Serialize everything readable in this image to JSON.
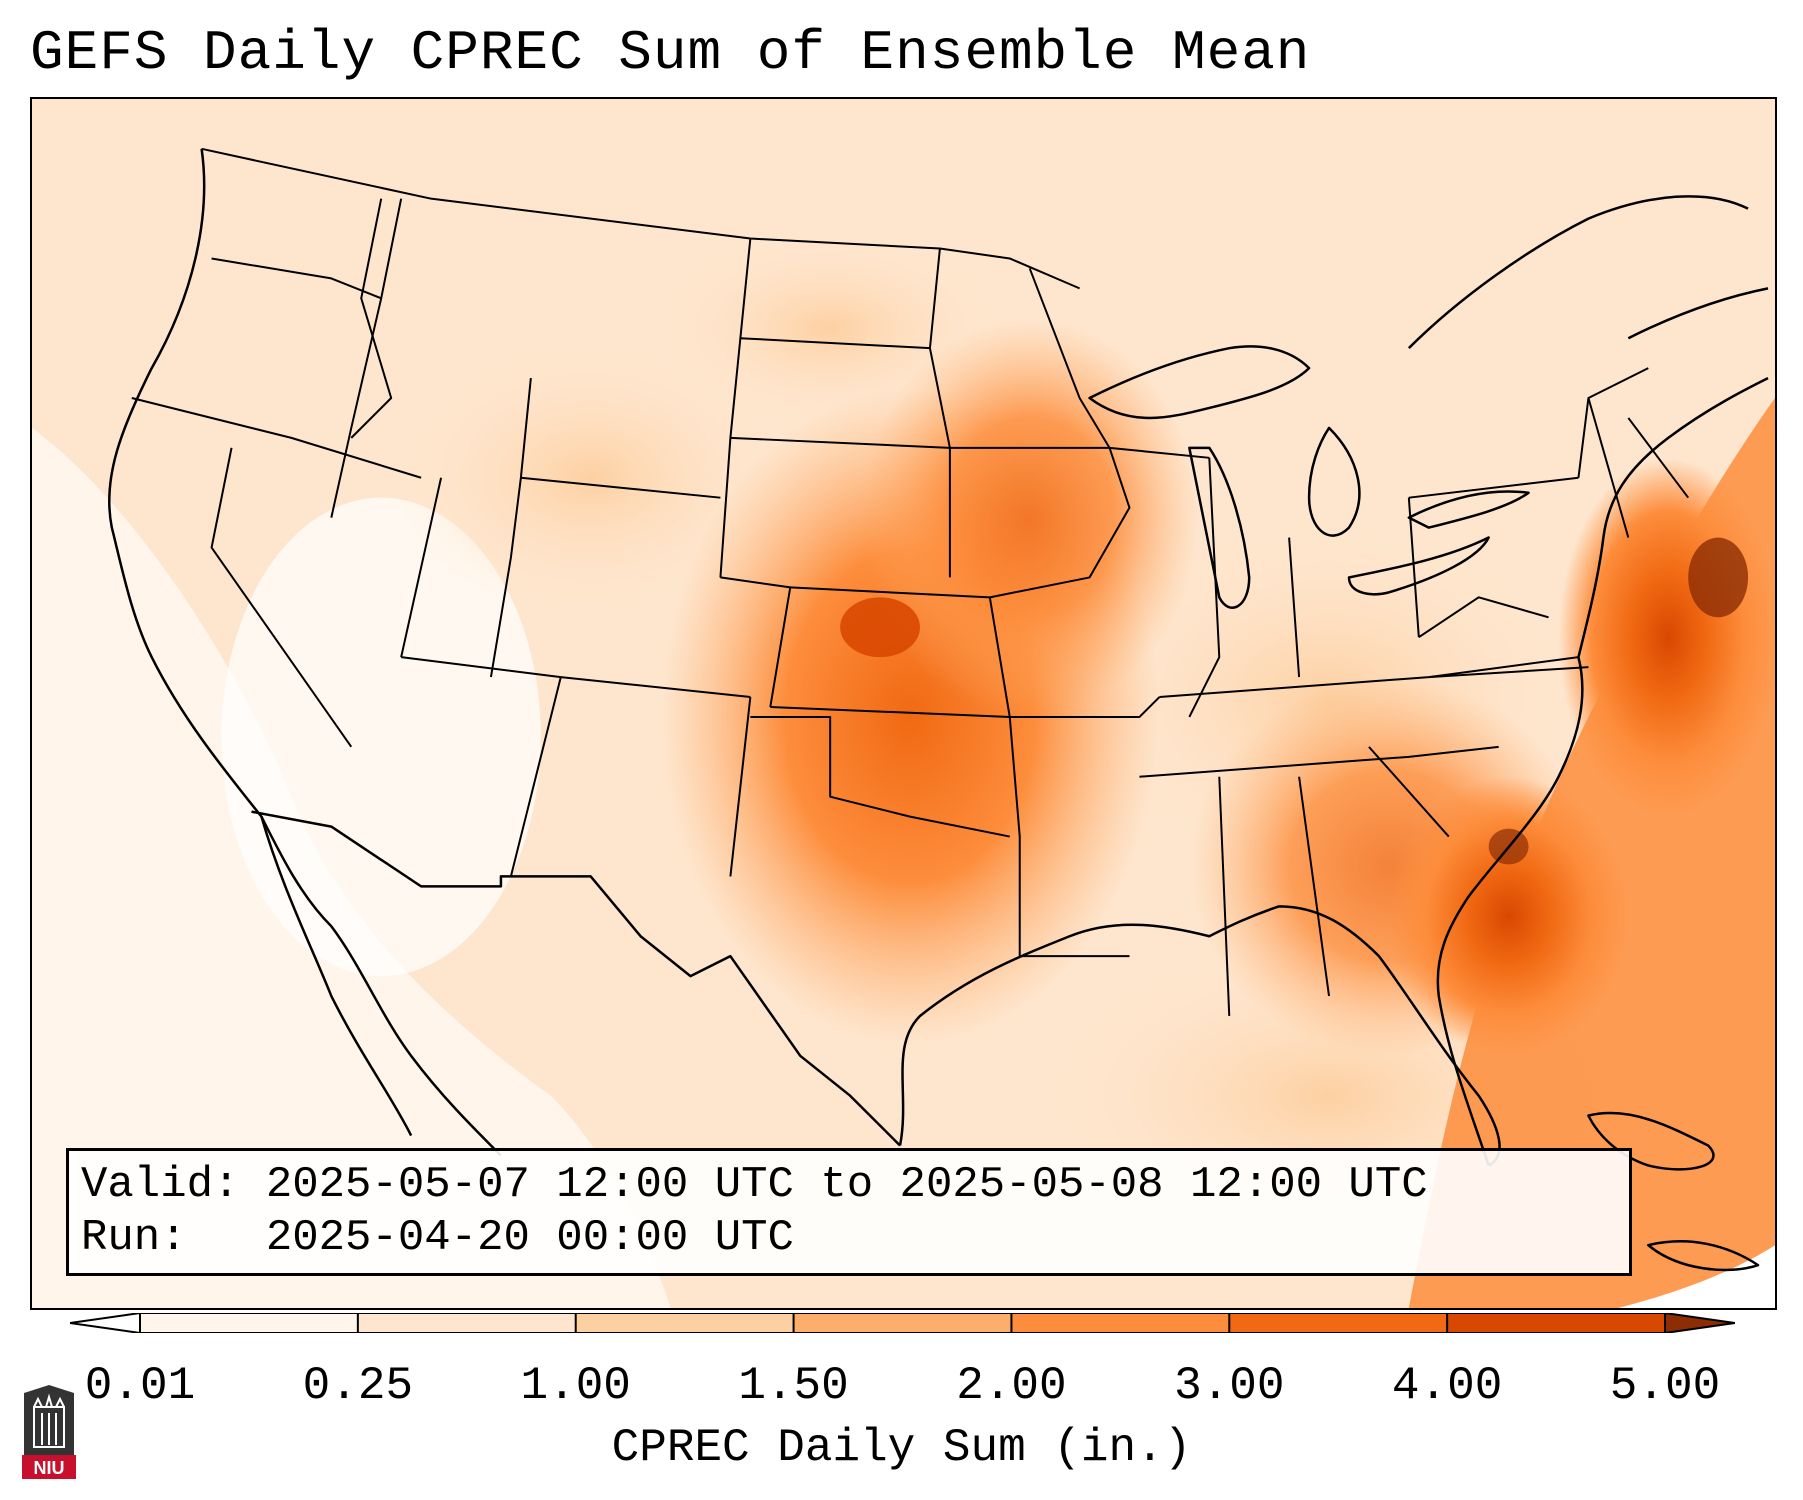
{
  "title": "GEFS Daily CPREC Sum of Ensemble Mean",
  "info": {
    "valid_label": "Valid:",
    "valid_value": "2025-05-07 12:00 UTC to 2025-05-08 12:00 UTC",
    "run_label": "Run:",
    "run_value": "2025-04-20 00:00 UTC"
  },
  "colorbar": {
    "label": "CPREC Daily Sum (in.)",
    "ticks": [
      "0.01",
      "0.25",
      "1.00",
      "1.50",
      "2.00",
      "3.00",
      "4.00",
      "5.00"
    ],
    "colors": [
      "#fff5eb",
      "#fee6ce",
      "#fdd0a2",
      "#fdae6b",
      "#fd8d3c",
      "#f16913",
      "#d94801",
      "#8c2d04"
    ]
  },
  "logo": {
    "text": "NIU",
    "color": "#c8102e"
  },
  "map": {
    "projection": "Lambert Conformal",
    "region": "Contiguous United States",
    "overlays": [
      "state-borders",
      "coastlines",
      "country-borders"
    ]
  }
}
